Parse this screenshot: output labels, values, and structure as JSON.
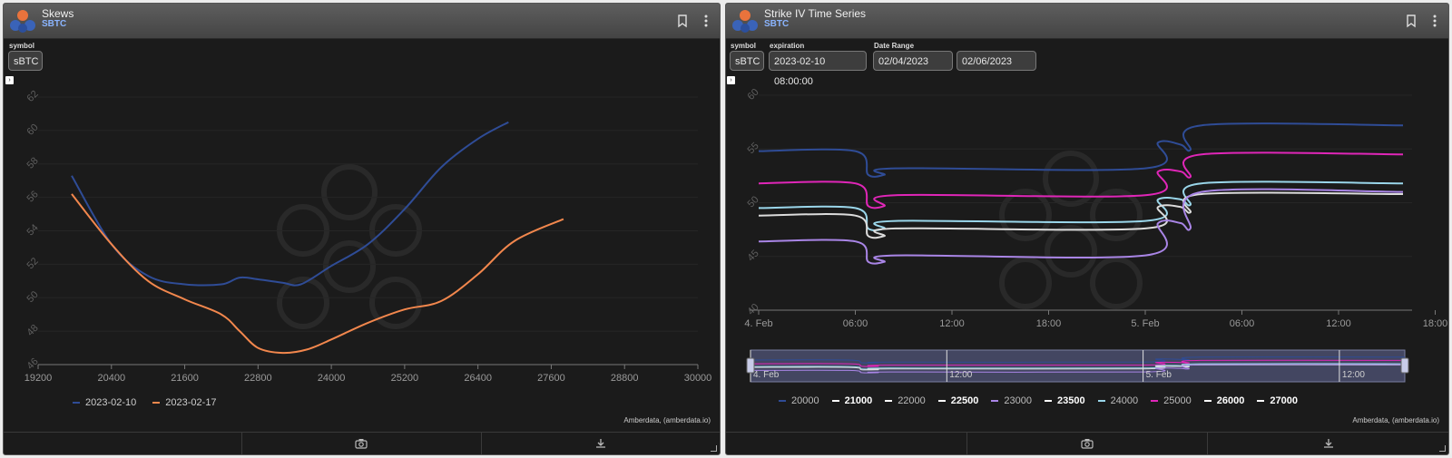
{
  "colors": {
    "panel_bg": "#1b1b1b",
    "header_bg": "#4d4d4d",
    "subtitle": "#8ab4ff",
    "series_2023_02_10": "#2f4c96",
    "series_2023_02_17": "#f2874d"
  },
  "left_panel": {
    "title": "Skews",
    "subtitle": "SBTC",
    "icons": [
      "bookmark-icon",
      "more-vertical-icon"
    ],
    "symbol_label": "symbol",
    "symbol_value": "sBTC",
    "credit": "Amberdata, (amberdata.io)",
    "footer_icons": [
      "camera-icon",
      "download-icon"
    ]
  },
  "right_panel": {
    "title": "Strike IV Time Series",
    "subtitle": "SBTC",
    "icons": [
      "bookmark-icon",
      "more-vertical-icon"
    ],
    "symbol_label": "symbol",
    "symbol_value": "sBTC",
    "expiration_label": "expiration",
    "expiration_value": "2023-02-10 08:00:00",
    "date_range_label": "Date Range",
    "date_from": "02/04/2023",
    "date_to": "02/06/2023",
    "credit": "Amberdata, (amberdata.io)",
    "footer_icons": [
      "camera-icon",
      "download-icon"
    ],
    "navigator_labels": [
      "4. Feb",
      "12:00",
      "5. Feb",
      "12:00"
    ]
  },
  "chart_data": [
    {
      "type": "line",
      "title": "",
      "xlabel": "",
      "ylabel": "",
      "xlim": [
        19200,
        30000
      ],
      "ylim": [
        46,
        62
      ],
      "x_ticks": [
        "19200",
        "20400",
        "21600",
        "22800",
        "24000",
        "25200",
        "26400",
        "27600",
        "28800",
        "30000"
      ],
      "y_ticks": [
        "46",
        "48",
        "50",
        "52",
        "54",
        "56",
        "58",
        "60",
        "62"
      ],
      "legend_position": "bottom-left",
      "series": [
        {
          "name": "2023-02-10",
          "color": "#2f4c96",
          "x": [
            19750,
            20400,
            21000,
            21600,
            22200,
            22500,
            22800,
            23200,
            23500,
            24000,
            24600,
            25200,
            25800,
            26400,
            26900
          ],
          "y": [
            57.3,
            53.2,
            51.3,
            50.8,
            50.8,
            51.2,
            51.1,
            50.9,
            50.8,
            51.9,
            53.2,
            55.3,
            57.8,
            59.5,
            60.5
          ]
        },
        {
          "name": "2023-02-17",
          "color": "#f2874d",
          "x": [
            19750,
            20400,
            21000,
            21600,
            22200,
            22500,
            22800,
            23200,
            23600,
            24000,
            24600,
            25200,
            25800,
            26400,
            27000,
            27800
          ],
          "y": [
            56.2,
            53.2,
            51.0,
            49.9,
            49.0,
            48.0,
            47.0,
            46.7,
            46.9,
            47.5,
            48.5,
            49.3,
            49.8,
            51.4,
            53.4,
            54.7
          ]
        }
      ]
    },
    {
      "type": "line",
      "title": "",
      "xlabel": "",
      "ylabel": "",
      "x_unit": "hours from 4. Feb 00:00",
      "xlim": [
        0,
        40
      ],
      "ylim": [
        40,
        60
      ],
      "x_ticks": [
        "4. Feb",
        "06:00",
        "12:00",
        "18:00",
        "5. Feb",
        "06:00",
        "12:00",
        "18:00"
      ],
      "y_ticks": [
        "40",
        "45",
        "50",
        "55",
        "60"
      ],
      "legend_position": "bottom",
      "legend": [
        {
          "name": "20000",
          "color": "#2f4c96",
          "visible": true
        },
        {
          "name": "21000",
          "color": "#ffffff",
          "visible": false
        },
        {
          "name": "22000",
          "color": "#ffffff",
          "visible": true
        },
        {
          "name": "22500",
          "color": "#ffffff",
          "visible": false
        },
        {
          "name": "23000",
          "color": "#a985e6",
          "visible": true
        },
        {
          "name": "23500",
          "color": "#ffffff",
          "visible": false
        },
        {
          "name": "24000",
          "color": "#9ad6ea",
          "visible": true
        },
        {
          "name": "25000",
          "color": "#e026b8",
          "visible": true
        },
        {
          "name": "26000",
          "color": "#ffffff",
          "visible": false
        },
        {
          "name": "27000",
          "color": "#ffffff",
          "visible": false
        }
      ],
      "series": [
        {
          "name": "20000",
          "color": "#2f4c96",
          "x": [
            0,
            6,
            6.8,
            7.8,
            8.5,
            24,
            24.8,
            26.2,
            26.8,
            27.5,
            40
          ],
          "y": [
            54.8,
            54.8,
            52.6,
            52.6,
            53.2,
            53.2,
            55.6,
            55.4,
            54.9,
            57.2,
            57.2
          ]
        },
        {
          "name": "25000",
          "color": "#e026b8",
          "x": [
            0,
            6,
            6.8,
            7.8,
            8.5,
            24,
            24.8,
            26.2,
            26.8,
            27.5,
            40
          ],
          "y": [
            51.8,
            51.8,
            49.7,
            49.7,
            50.7,
            50.7,
            52.9,
            52.9,
            52.4,
            54.5,
            54.5
          ]
        },
        {
          "name": "24000",
          "color": "#9ad6ea",
          "x": [
            0,
            6,
            6.8,
            7.8,
            8.5,
            24,
            24.8,
            26.2,
            26.8,
            27.5,
            40
          ],
          "y": [
            49.5,
            49.5,
            47.6,
            47.6,
            48.3,
            48.3,
            50.3,
            50.3,
            49.8,
            51.8,
            51.8
          ]
        },
        {
          "name": "22000",
          "color": "#dcdcdc",
          "x": [
            0,
            6,
            6.8,
            7.8,
            8.5,
            24,
            24.8,
            26.2,
            26.8,
            27.5,
            40
          ],
          "y": [
            48.8,
            48.8,
            46.9,
            46.9,
            47.6,
            47.6,
            49.6,
            49.6,
            49.1,
            50.8,
            50.8
          ]
        },
        {
          "name": "23000",
          "color": "#a985e6",
          "x": [
            0,
            6,
            6.8,
            7.8,
            8.5,
            24,
            24.8,
            26.2,
            26.8,
            27.5,
            40
          ],
          "y": [
            46.4,
            46.4,
            44.5,
            44.5,
            45.1,
            45.1,
            48.1,
            48.1,
            47.6,
            51.0,
            51.0
          ]
        }
      ]
    }
  ]
}
